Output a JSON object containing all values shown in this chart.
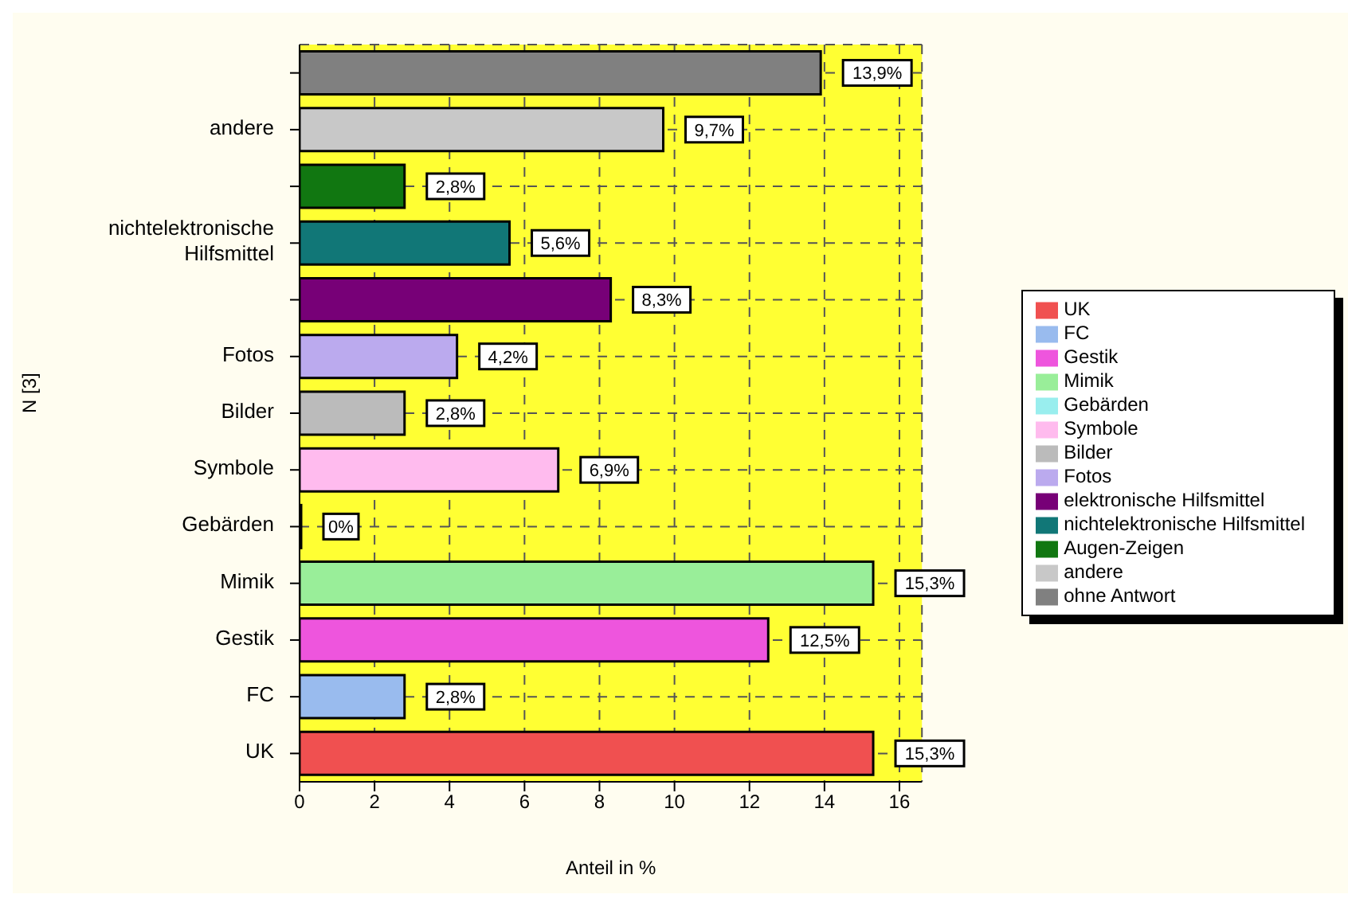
{
  "chart_data": {
    "type": "bar",
    "orientation": "horizontal",
    "stacked": true,
    "xlabel": "Anteil in %",
    "ylabel": "N [3]",
    "categories": [
      null,
      "andere",
      null,
      "nichtelektronische Hilfsmittel",
      null,
      "Fotos",
      "Bilder",
      "Symbole",
      "Gebärden",
      "Mimik",
      "Gestik",
      "FC",
      "UK"
    ],
    "series": [
      {
        "name": "UK",
        "color": "#f05050",
        "values": [
          null,
          null,
          null,
          null,
          null,
          null,
          null,
          null,
          null,
          null,
          null,
          null,
          15.3
        ],
        "value_labels": [
          null,
          null,
          null,
          null,
          null,
          null,
          null,
          null,
          null,
          null,
          null,
          null,
          "15,3%"
        ]
      },
      {
        "name": "FC",
        "color": "#99bbee",
        "values": [
          null,
          null,
          null,
          null,
          null,
          null,
          null,
          null,
          null,
          null,
          null,
          2.8,
          null
        ],
        "value_labels": [
          null,
          null,
          null,
          null,
          null,
          null,
          null,
          null,
          null,
          null,
          null,
          "2,8%",
          null
        ]
      },
      {
        "name": "Gestik",
        "color": "#ee55dd",
        "values": [
          null,
          null,
          null,
          null,
          null,
          null,
          null,
          null,
          null,
          null,
          12.5,
          null,
          null
        ],
        "value_labels": [
          null,
          null,
          null,
          null,
          null,
          null,
          null,
          null,
          null,
          null,
          "12,5%",
          null,
          null
        ]
      },
      {
        "name": "Mimik",
        "color": "#99ee99",
        "values": [
          null,
          null,
          null,
          null,
          null,
          null,
          null,
          null,
          null,
          15.3,
          null,
          null,
          null
        ],
        "value_labels": [
          null,
          null,
          null,
          null,
          null,
          null,
          null,
          null,
          null,
          "15,3%",
          null,
          null,
          null
        ]
      },
      {
        "name": "Gebärden",
        "color": "#99eeee",
        "values": [
          null,
          null,
          null,
          null,
          null,
          null,
          null,
          null,
          0,
          null,
          null,
          null,
          null
        ],
        "value_labels": [
          null,
          null,
          null,
          null,
          null,
          null,
          null,
          null,
          "0%",
          null,
          null,
          null,
          null
        ]
      },
      {
        "name": "Symbole",
        "color": "#ffbbee",
        "values": [
          null,
          null,
          null,
          null,
          null,
          null,
          null,
          6.9,
          null,
          null,
          null,
          null,
          null
        ],
        "value_labels": [
          null,
          null,
          null,
          null,
          null,
          null,
          null,
          "6,9%",
          null,
          null,
          null,
          null,
          null
        ]
      },
      {
        "name": "Bilder",
        "color": "#bbbbbb",
        "values": [
          null,
          null,
          null,
          null,
          null,
          null,
          2.8,
          null,
          null,
          null,
          null,
          null,
          null
        ],
        "value_labels": [
          null,
          null,
          null,
          null,
          null,
          null,
          "2,8%",
          null,
          null,
          null,
          null,
          null,
          null
        ]
      },
      {
        "name": "Fotos",
        "color": "#bbaaee",
        "values": [
          null,
          null,
          null,
          null,
          null,
          4.2,
          null,
          null,
          null,
          null,
          null,
          null,
          null
        ],
        "value_labels": [
          null,
          null,
          null,
          null,
          null,
          "4,2%",
          null,
          null,
          null,
          null,
          null,
          null,
          null
        ]
      },
      {
        "name": "elektronische Hilfsmittel",
        "color": "#770077",
        "values": [
          null,
          null,
          null,
          null,
          8.3,
          null,
          null,
          null,
          null,
          null,
          null,
          null,
          null
        ],
        "value_labels": [
          null,
          null,
          null,
          null,
          "8,3%",
          null,
          null,
          null,
          null,
          null,
          null,
          null,
          null
        ]
      },
      {
        "name": "nichtelektronische Hilfsmittel",
        "color": "#117777",
        "values": [
          null,
          null,
          null,
          5.6,
          null,
          null,
          null,
          null,
          null,
          null,
          null,
          null,
          null
        ],
        "value_labels": [
          null,
          null,
          null,
          "5,6%",
          null,
          null,
          null,
          null,
          null,
          null,
          null,
          null,
          null
        ]
      },
      {
        "name": "Augen-Zeigen",
        "color": "#117711",
        "values": [
          null,
          null,
          2.8,
          null,
          null,
          null,
          null,
          null,
          null,
          null,
          null,
          null,
          null
        ],
        "value_labels": [
          null,
          null,
          "2,8%",
          null,
          null,
          null,
          null,
          null,
          null,
          null,
          null,
          null,
          null
        ]
      },
      {
        "name": "andere",
        "color": "#c8c8c8",
        "values": [
          null,
          9.7,
          null,
          null,
          null,
          null,
          null,
          null,
          null,
          null,
          null,
          null,
          null
        ],
        "value_labels": [
          null,
          "9,7%",
          null,
          null,
          null,
          null,
          null,
          null,
          null,
          null,
          null,
          null,
          null
        ]
      },
      {
        "name": "ohne Antwort",
        "color": "#808080",
        "values": [
          13.9,
          null,
          null,
          null,
          null,
          null,
          null,
          null,
          null,
          null,
          null,
          null,
          null
        ],
        "value_labels": [
          "13,9%",
          null,
          null,
          null,
          null,
          null,
          null,
          null,
          null,
          null,
          null,
          null,
          null
        ]
      }
    ],
    "xlim": [
      0,
      16.6
    ],
    "xticks": [
      0,
      2,
      4,
      6,
      8,
      10,
      12,
      14,
      16
    ],
    "grid": true,
    "legend": "right"
  }
}
